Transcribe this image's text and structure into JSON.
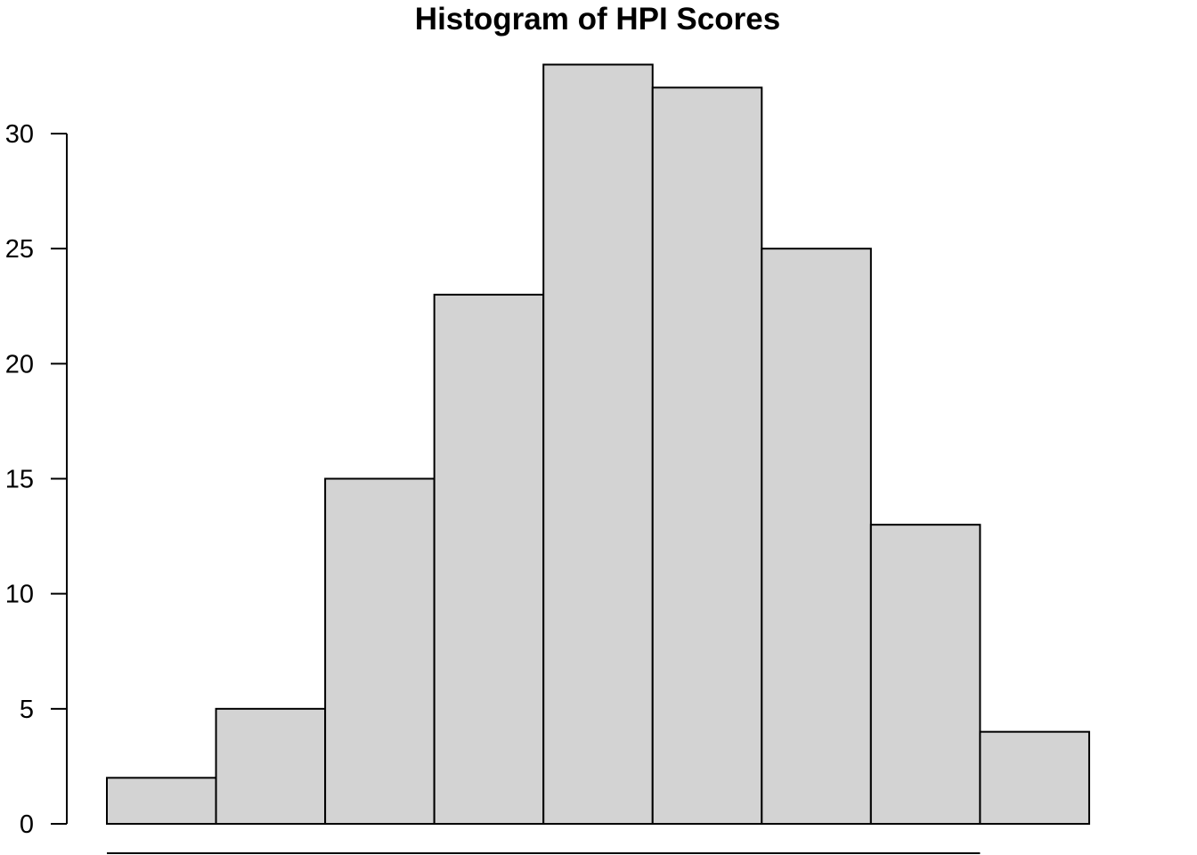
{
  "chart_data": {
    "type": "bar",
    "title": "Histogram of HPI Scores",
    "xlabel": "",
    "ylabel": "",
    "bins": 9,
    "values": [
      2,
      5,
      15,
      23,
      33,
      32,
      25,
      13,
      4
    ],
    "ylim": [
      0,
      33
    ],
    "y_ticks": [
      0,
      5,
      10,
      15,
      20,
      25,
      30
    ],
    "y_tick_labels": [
      "0",
      "5",
      "10",
      "15",
      "20",
      "25",
      "30"
    ],
    "bar_fill": "#d3d3d3",
    "bar_outline": "#000000",
    "grid": false,
    "legend": "none"
  }
}
